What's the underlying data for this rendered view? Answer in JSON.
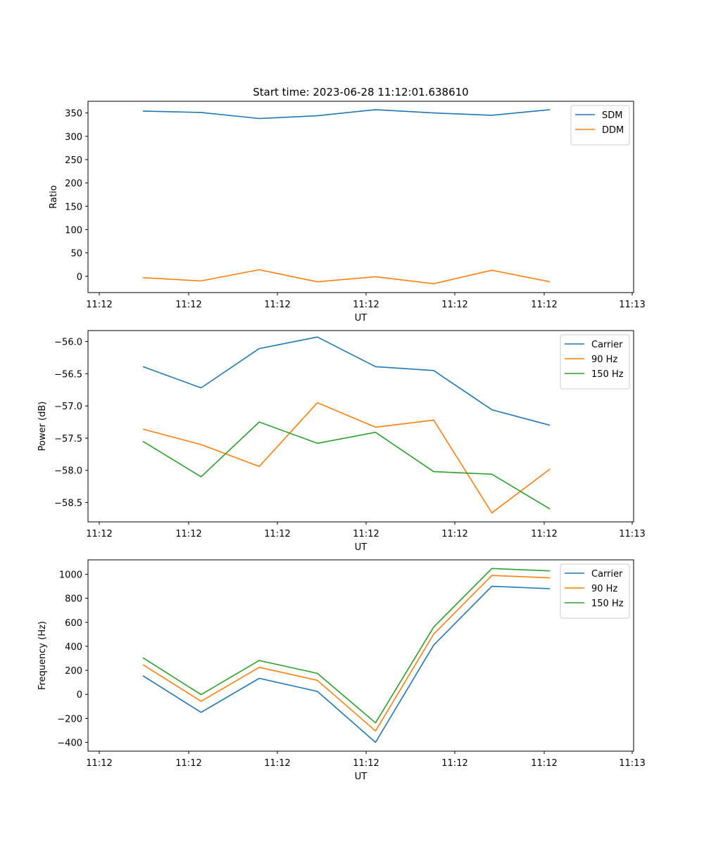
{
  "figure_title": "Start time: 2023-06-28 11:12:01.638610",
  "colors": {
    "blue": "#1f77b4",
    "orange": "#ff7f0e",
    "green": "#2ca02c"
  },
  "chart_data": [
    {
      "type": "line",
      "title": "Start time: 2023-06-28 11:12:01.638610",
      "xlabel": "UT",
      "ylabel": "Ratio",
      "x_tick_labels": [
        "11:12",
        "11:12",
        "11:12",
        "11:12",
        "11:12",
        "11:12",
        "11:13"
      ],
      "x_points": 8,
      "ylim": [
        -35,
        375
      ],
      "yticks": [
        0,
        50,
        100,
        150,
        200,
        250,
        300,
        350
      ],
      "y_tick_labels": [
        "0",
        "50",
        "100",
        "150",
        "200",
        "250",
        "300",
        "350"
      ],
      "legend": "top-right",
      "series": [
        {
          "name": "SDM",
          "color": "#1f77b4",
          "values": [
            354,
            351,
            338,
            344,
            357,
            350,
            345,
            357
          ]
        },
        {
          "name": "DDM",
          "color": "#ff7f0e",
          "values": [
            -3,
            -10,
            14,
            -12,
            -1,
            -16,
            13,
            -12
          ]
        }
      ]
    },
    {
      "type": "line",
      "title": "",
      "xlabel": "UT",
      "ylabel": "Power (dB)",
      "x_tick_labels": [
        "11:12",
        "11:12",
        "11:12",
        "11:12",
        "11:12",
        "11:12",
        "11:13"
      ],
      "x_points": 8,
      "ylim": [
        -58.8,
        -55.83
      ],
      "yticks": [
        -58.5,
        -58.0,
        -57.5,
        -57.0,
        -56.5,
        -56.0
      ],
      "y_tick_labels": [
        "−58.5",
        "−58.0",
        "−57.5",
        "−57.0",
        "−56.5",
        "−56.0"
      ],
      "legend": "top-right",
      "series": [
        {
          "name": "Carrier",
          "color": "#1f77b4",
          "values": [
            -56.39,
            -56.72,
            -56.11,
            -55.93,
            -56.39,
            -56.45,
            -57.06,
            -57.3
          ]
        },
        {
          "name": "90 Hz",
          "color": "#ff7f0e",
          "values": [
            -57.36,
            -57.6,
            -57.94,
            -56.95,
            -57.33,
            -57.22,
            -58.66,
            -57.98
          ]
        },
        {
          "name": "150 Hz",
          "color": "#2ca02c",
          "values": [
            -57.55,
            -58.1,
            -57.25,
            -57.58,
            -57.41,
            -58.02,
            -58.06,
            -58.6
          ]
        }
      ]
    },
    {
      "type": "line",
      "title": "",
      "xlabel": "UT",
      "ylabel": "Frequency (Hz)",
      "x_tick_labels": [
        "11:12",
        "11:12",
        "11:12",
        "11:12",
        "11:12",
        "11:12",
        "11:13"
      ],
      "x_points": 8,
      "ylim": [
        -473,
        1120
      ],
      "yticks": [
        -400,
        -200,
        0,
        200,
        400,
        600,
        800,
        1000
      ],
      "y_tick_labels": [
        "−400",
        "−200",
        "0",
        "200",
        "400",
        "600",
        "800",
        "1000"
      ],
      "legend": "top-right",
      "series": [
        {
          "name": "Carrier",
          "color": "#1f77b4",
          "values": [
            155,
            -150,
            133,
            25,
            -400,
            410,
            900,
            880
          ]
        },
        {
          "name": "90 Hz",
          "color": "#ff7f0e",
          "values": [
            247,
            -58,
            225,
            117,
            -305,
            502,
            990,
            970
          ]
        },
        {
          "name": "150 Hz",
          "color": "#2ca02c",
          "values": [
            305,
            -2,
            282,
            175,
            -237,
            560,
            1048,
            1028
          ]
        }
      ]
    }
  ]
}
